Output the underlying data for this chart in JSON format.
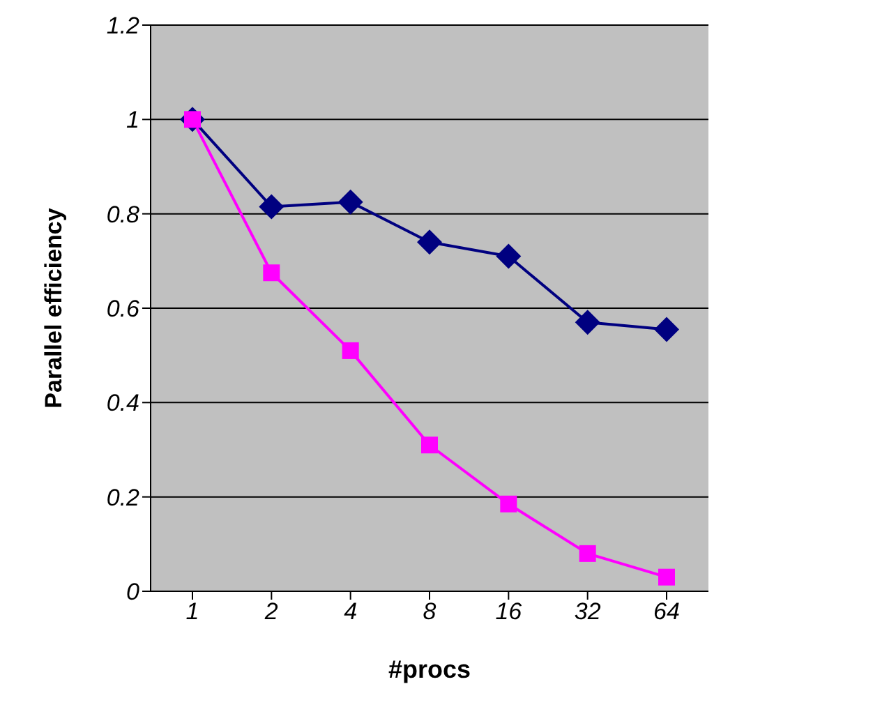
{
  "chart_data": {
    "type": "line",
    "xlabel": "#procs",
    "ylabel": "Parallel efficiency",
    "categories": [
      "1",
      "2",
      "4",
      "8",
      "16",
      "32",
      "64"
    ],
    "series": [
      {
        "color": "#000080",
        "marker": "diamond",
        "values": [
          1,
          0.815,
          0.825,
          0.74,
          0.71,
          0.57,
          0.555
        ]
      },
      {
        "color": "#ff00ff",
        "marker": "square",
        "values": [
          1,
          0.675,
          0.51,
          0.31,
          0.185,
          0.08,
          0.03
        ]
      }
    ],
    "ylim": [
      0,
      1.2
    ],
    "yticks": [
      0,
      0.2,
      0.4,
      0.6,
      0.8,
      1,
      {
        "value": 1.2,
        "label": "1.2"
      }
    ],
    "grid": "y",
    "legend": false
  }
}
